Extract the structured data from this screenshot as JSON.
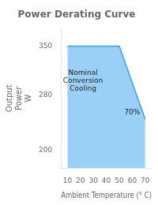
{
  "chart_data": {
    "type": "line",
    "title": "Power Derating Curve",
    "xlabel": "Ambient Temperature (° C)",
    "ylabel": "Output\nPower\nW",
    "x": [
      10,
      50,
      70
    ],
    "values": [
      350,
      350,
      245
    ],
    "xlim": [
      5,
      75
    ],
    "xticks": [
      10,
      20,
      30,
      40,
      50,
      60,
      70
    ],
    "ylim": [
      175,
      375
    ],
    "yticks": [
      200,
      280,
      350
    ],
    "grid": false,
    "annotations": [
      {
        "x": 22,
        "y": 300,
        "text": "Nominal\nConversion\nCooling"
      },
      {
        "x": 60,
        "y": 255,
        "text": "70%"
      }
    ]
  }
}
